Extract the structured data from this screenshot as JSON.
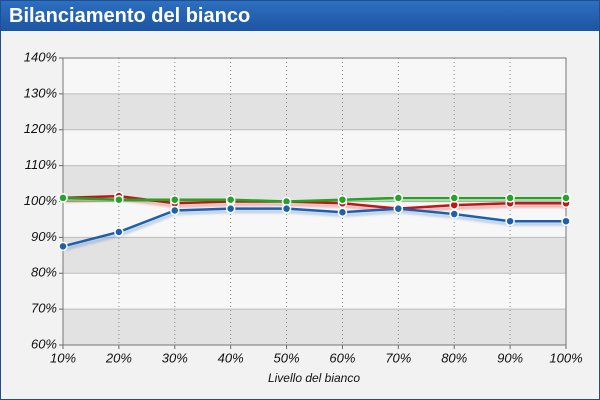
{
  "chart_data": {
    "type": "line",
    "title": "Bilanciamento del bianco",
    "x_label": "Livello del bianco",
    "categories": [
      "10%",
      "20%",
      "30%",
      "40%",
      "50%",
      "60%",
      "70%",
      "80%",
      "90%",
      "100%"
    ],
    "series": [
      {
        "color": "#c01818",
        "values": [
          101,
          101.5,
          99.5,
          100,
          100,
          99.5,
          98,
          99,
          99.5,
          99.5
        ]
      },
      {
        "color": "#24a424",
        "values": [
          101,
          100.5,
          100.5,
          100.5,
          100,
          100.5,
          101,
          101,
          101,
          101
        ]
      },
      {
        "color": "#1f5fb0",
        "values": [
          87.5,
          91.5,
          97.5,
          98,
          98,
          97,
          98,
          96.5,
          94.5,
          94.5
        ]
      }
    ],
    "ylim": [
      60,
      140
    ],
    "yticks": [
      {
        "value": 60,
        "label": "60%"
      },
      {
        "value": 70,
        "label": "70%"
      },
      {
        "value": 80,
        "label": "80%"
      },
      {
        "value": 90,
        "label": "90%"
      },
      {
        "value": 100,
        "label": "100%"
      },
      {
        "value": 110,
        "label": "110%"
      },
      {
        "value": 120,
        "label": "120%"
      },
      {
        "value": 130,
        "label": "130%"
      },
      {
        "value": 140,
        "label": "140%"
      }
    ],
    "grid": true
  }
}
